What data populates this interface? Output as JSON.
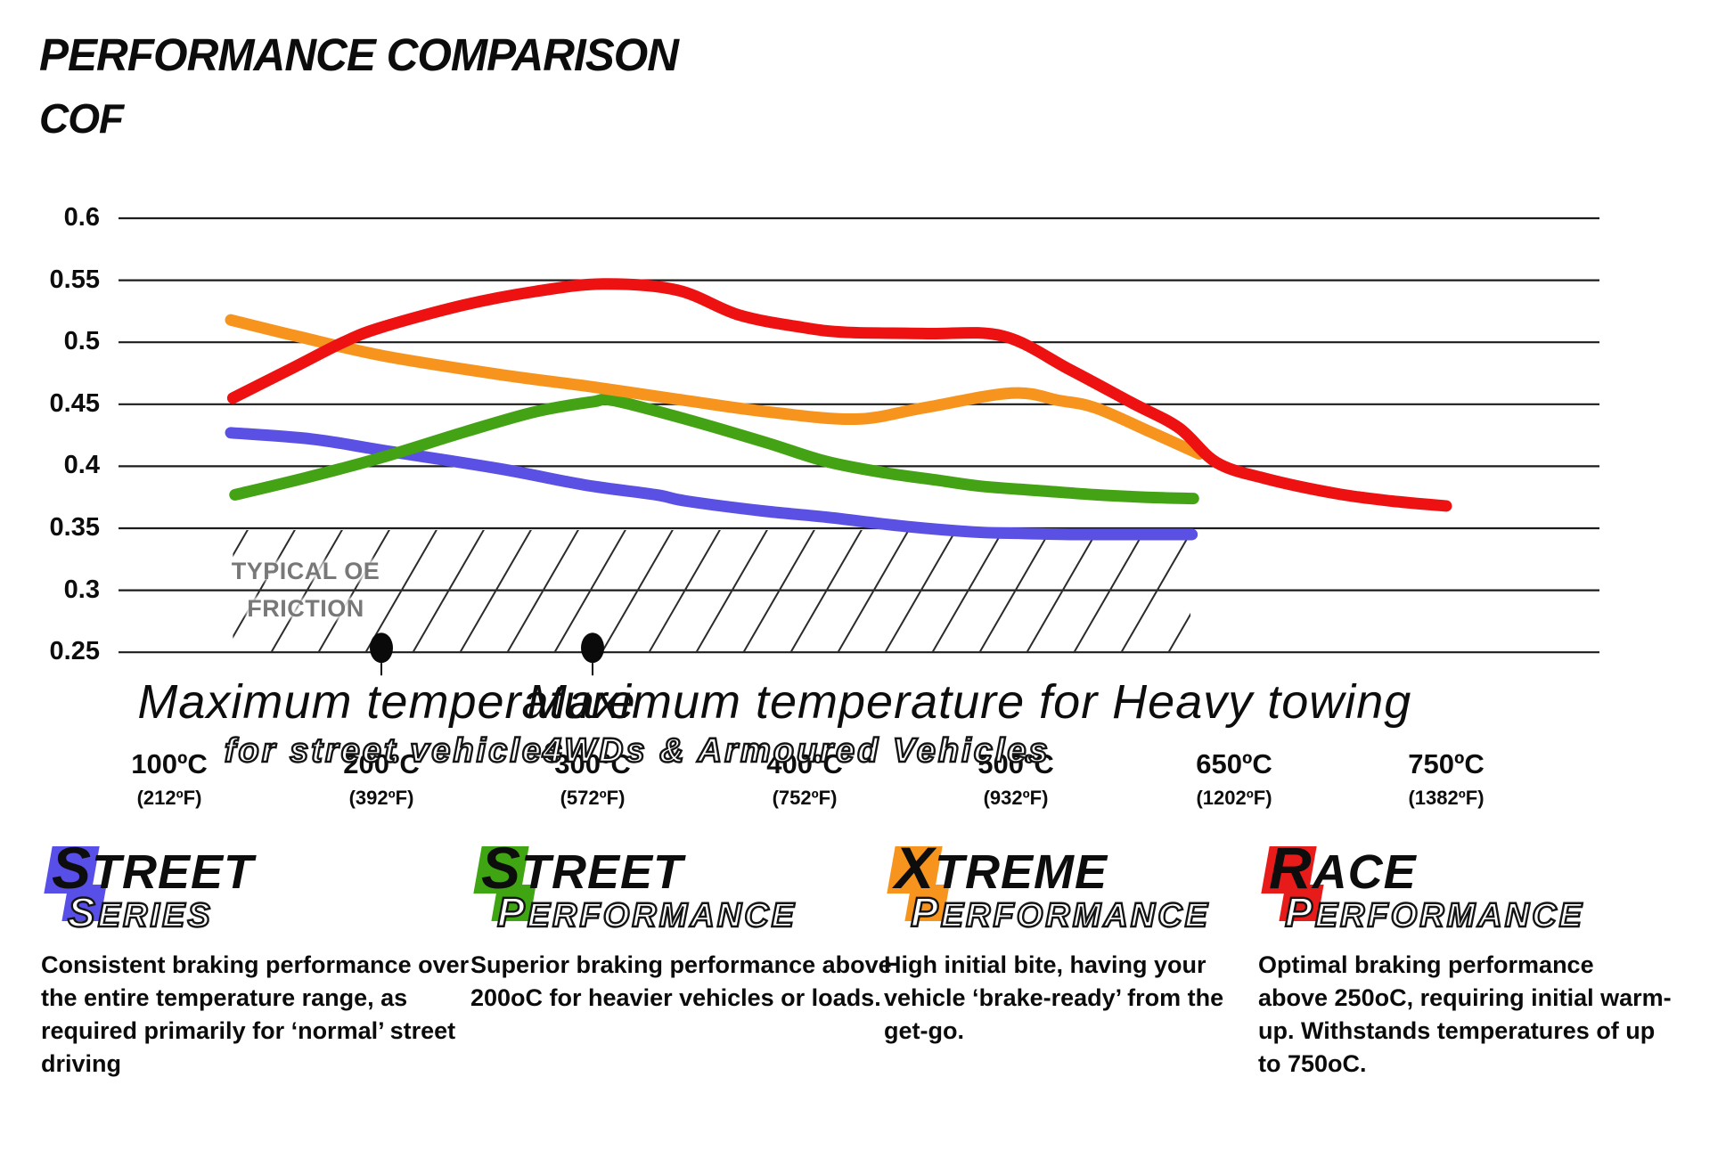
{
  "page": {
    "title": "PERFORMANCE COMPARISON"
  },
  "chart_data": {
    "type": "line",
    "title": "PERFORMANCE COMPARISON",
    "ylabel": "COF",
    "ylim": [
      0.25,
      0.6
    ],
    "grid": "horizontal",
    "legend_position": "bottom",
    "y_ticks": [
      {
        "value": 0.6,
        "label": "0.6"
      },
      {
        "value": 0.55,
        "label": "0.55"
      },
      {
        "value": 0.5,
        "label": "0.5"
      },
      {
        "value": 0.45,
        "label": "0.45"
      },
      {
        "value": 0.4,
        "label": "0.4"
      },
      {
        "value": 0.35,
        "label": "0.35"
      },
      {
        "value": 0.3,
        "label": "0.3"
      },
      {
        "value": 0.25,
        "label": "0.25"
      }
    ],
    "x_ticks": [
      {
        "temp": 100,
        "label": "100ºC",
        "sub": "(212ºF)"
      },
      {
        "temp": 200,
        "label": "200ºC",
        "sub": "(392ºF)"
      },
      {
        "temp": 300,
        "label": "300ºC",
        "sub": "(572ºF)"
      },
      {
        "temp": 400,
        "label": "400ºC",
        "sub": "(752ºF)"
      },
      {
        "temp": 500,
        "label": "500ºC",
        "sub": "(932ºF)"
      },
      {
        "temp": 650,
        "label": "650ºC",
        "sub": "(1202ºF)"
      },
      {
        "temp": 750,
        "label": "750ºC",
        "sub": "(1382ºF)"
      }
    ],
    "oe_band": {
      "label": "TYPICAL OE\nFRICTION",
      "cof_range": [
        0.25,
        0.35
      ],
      "temp_range": [
        130,
        620
      ]
    },
    "annotations": [
      {
        "temp": 200,
        "cof": 0.25,
        "line1": "Maximum temperature",
        "line2": "for street vehicles",
        "align": "center"
      },
      {
        "temp": 300,
        "cof": 0.25,
        "line1": "Maximum temperature for Heavy towing",
        "line2": "4WDs & Armoured Vehicles",
        "align": "left"
      }
    ],
    "series": [
      {
        "name": "Street Series",
        "color": "#5a50e4",
        "points": [
          [
            129,
            0.427
          ],
          [
            167,
            0.422
          ],
          [
            200,
            0.413
          ],
          [
            256,
            0.398
          ],
          [
            296,
            0.385
          ],
          [
            330,
            0.377
          ],
          [
            344,
            0.372
          ],
          [
            380,
            0.364
          ],
          [
            410,
            0.359
          ],
          [
            445,
            0.352
          ],
          [
            480,
            0.347
          ],
          [
            500,
            0.346
          ],
          [
            540,
            0.345
          ],
          [
            580,
            0.345
          ],
          [
            621,
            0.345
          ]
        ]
      },
      {
        "name": "Street Performance",
        "color": "#43a314",
        "points": [
          [
            131,
            0.377
          ],
          [
            165,
            0.391
          ],
          [
            200,
            0.407
          ],
          [
            240,
            0.428
          ],
          [
            273,
            0.444
          ],
          [
            300,
            0.452
          ],
          [
            310,
            0.453
          ],
          [
            344,
            0.438
          ],
          [
            382,
            0.419
          ],
          [
            410,
            0.404
          ],
          [
            437,
            0.395
          ],
          [
            462,
            0.389
          ],
          [
            483,
            0.384
          ],
          [
            520,
            0.38
          ],
          [
            555,
            0.377
          ],
          [
            590,
            0.375
          ],
          [
            622,
            0.374
          ]
        ]
      },
      {
        "name": "Xtreme Performance",
        "color": "#f7941e",
        "points": [
          [
            129,
            0.518
          ],
          [
            160,
            0.505
          ],
          [
            201,
            0.489
          ],
          [
            256,
            0.474
          ],
          [
            300,
            0.464
          ],
          [
            344,
            0.453
          ],
          [
            382,
            0.444
          ],
          [
            424,
            0.438
          ],
          [
            456,
            0.447
          ],
          [
            498,
            0.459
          ],
          [
            530,
            0.453
          ],
          [
            555,
            0.447
          ],
          [
            592,
            0.428
          ],
          [
            626,
            0.41
          ]
        ]
      },
      {
        "name": "Race Performance",
        "color": "#ee1111",
        "points": [
          [
            130,
            0.455
          ],
          [
            159,
            0.48
          ],
          [
            182,
            0.5
          ],
          [
            200,
            0.512
          ],
          [
            239,
            0.53
          ],
          [
            273,
            0.541
          ],
          [
            305,
            0.547
          ],
          [
            340,
            0.542
          ],
          [
            369,
            0.522
          ],
          [
            399,
            0.512
          ],
          [
            420,
            0.508
          ],
          [
            458,
            0.507
          ],
          [
            494,
            0.505
          ],
          [
            537,
            0.478
          ],
          [
            580,
            0.451
          ],
          [
            612,
            0.431
          ],
          [
            638,
            0.403
          ],
          [
            665,
            0.39
          ],
          [
            698,
            0.378
          ],
          [
            724,
            0.372
          ],
          [
            750,
            0.368
          ]
        ]
      }
    ]
  },
  "legend": [
    {
      "word1_initial": "S",
      "word1_rest": "TREET",
      "word2_initial": "S",
      "word2_rest": "ERIES",
      "color": "#584fe8",
      "description": "Consistent braking performance over\nthe entire temperature range, as\nrequired primarily for ‘normal’ street\ndriving"
    },
    {
      "word1_initial": "S",
      "word1_rest": "TREET",
      "word2_initial": "P",
      "word2_rest": "ERFORMANCE",
      "color": "#3fa513",
      "description": "Superior braking performance above\n200oC for heavier vehicles or loads."
    },
    {
      "word1_initial": "X",
      "word1_rest": "TREME",
      "word2_initial": "P",
      "word2_rest": "ERFORMANCE",
      "color": "#f7941e",
      "description": "High initial bite, having your\nvehicle ‘brake-ready’ from the\nget-go."
    },
    {
      "word1_initial": "R",
      "word1_rest": "ACE",
      "word2_initial": "P",
      "word2_rest": "ERFORMANCE",
      "color": "#e81b1b",
      "description": "Optimal braking performance\nabove 250oC, requiring initial warm-\nup. Withstands temperatures of up\nto 750oC."
    }
  ]
}
